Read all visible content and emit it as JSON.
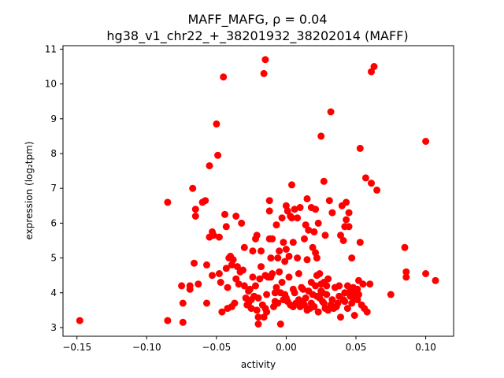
{
  "chart_data": {
    "type": "scatter",
    "title_line1": "MAFF_MAFG, ρ = 0.04",
    "title_line2": "hg38_v1_chr22_+_38201932_38202014 (MAFF)",
    "xlabel": "activity",
    "ylabel": "expression (log₂tpm)",
    "xlim": [
      -0.16,
      0.12
    ],
    "ylim": [
      2.75,
      11.1
    ],
    "xticks": [
      -0.15,
      -0.1,
      -0.05,
      0.0,
      0.05,
      0.1
    ],
    "xtick_labels": [
      "−0.15",
      "−0.10",
      "−0.05",
      "0.00",
      "0.05",
      "0.10"
    ],
    "yticks": [
      3,
      4,
      5,
      6,
      7,
      8,
      9,
      10,
      11
    ],
    "ytick_labels": [
      "3",
      "4",
      "5",
      "6",
      "7",
      "8",
      "9",
      "10",
      "11"
    ],
    "marker_color": "#ff0000",
    "grid": false,
    "points": [
      [
        -0.148,
        3.2
      ],
      [
        -0.085,
        6.6
      ],
      [
        -0.085,
        3.2
      ],
      [
        -0.075,
        4.2
      ],
      [
        -0.074,
        3.7
      ],
      [
        -0.074,
        3.15
      ],
      [
        -0.069,
        4.2
      ],
      [
        -0.069,
        4.1
      ],
      [
        -0.067,
        7.0
      ],
      [
        -0.066,
        4.85
      ],
      [
        -0.065,
        6.4
      ],
      [
        -0.065,
        6.2
      ],
      [
        -0.063,
        4.25
      ],
      [
        -0.06,
        6.6
      ],
      [
        -0.058,
        6.65
      ],
      [
        -0.057,
        3.7
      ],
      [
        -0.057,
        4.8
      ],
      [
        -0.055,
        5.6
      ],
      [
        -0.055,
        7.65
      ],
      [
        -0.053,
        5.75
      ],
      [
        -0.053,
        4.5
      ],
      [
        -0.052,
        5.65
      ],
      [
        -0.05,
        8.85
      ],
      [
        -0.049,
        7.95
      ],
      [
        -0.048,
        5.6
      ],
      [
        -0.048,
        4.55
      ],
      [
        -0.047,
        4.3
      ],
      [
        -0.046,
        3.45
      ],
      [
        -0.045,
        10.2
      ],
      [
        -0.044,
        6.25
      ],
      [
        -0.043,
        5.9
      ],
      [
        -0.043,
        4.7
      ],
      [
        -0.042,
        3.55
      ],
      [
        -0.042,
        4.15
      ],
      [
        -0.041,
        5.0
      ],
      [
        -0.04,
        5.05
      ],
      [
        -0.039,
        4.8
      ],
      [
        -0.039,
        3.6
      ],
      [
        -0.038,
        4.95
      ],
      [
        -0.037,
        3.7
      ],
      [
        -0.036,
        6.2
      ],
      [
        -0.036,
        4.4
      ],
      [
        -0.035,
        4.75
      ],
      [
        -0.034,
        4.25
      ],
      [
        -0.033,
        4.6
      ],
      [
        -0.032,
        6.0
      ],
      [
        -0.031,
        4.65
      ],
      [
        -0.03,
        4.2
      ],
      [
        -0.03,
        5.3
      ],
      [
        -0.029,
        3.85
      ],
      [
        -0.028,
        3.65
      ],
      [
        -0.027,
        4.05
      ],
      [
        -0.027,
        3.7
      ],
      [
        -0.026,
        4.1
      ],
      [
        -0.025,
        3.8
      ],
      [
        -0.025,
        3.55
      ],
      [
        -0.024,
        5.2
      ],
      [
        -0.024,
        4.45
      ],
      [
        -0.023,
        3.9
      ],
      [
        -0.022,
        4.2
      ],
      [
        -0.022,
        5.55
      ],
      [
        -0.021,
        3.5
      ],
      [
        -0.021,
        5.65
      ],
      [
        -0.02,
        3.1
      ],
      [
        -0.02,
        3.3
      ],
      [
        -0.02,
        3.85
      ],
      [
        -0.019,
        4.4
      ],
      [
        -0.018,
        4.75
      ],
      [
        -0.018,
        5.2
      ],
      [
        -0.017,
        3.65
      ],
      [
        -0.016,
        3.3
      ],
      [
        -0.016,
        10.3
      ],
      [
        -0.015,
        10.7
      ],
      [
        -0.015,
        4.5
      ],
      [
        -0.015,
        3.55
      ],
      [
        -0.014,
        3.45
      ],
      [
        -0.014,
        3.95
      ],
      [
        -0.013,
        4.45
      ],
      [
        -0.012,
        6.35
      ],
      [
        -0.012,
        5.55
      ],
      [
        -0.012,
        6.65
      ],
      [
        -0.011,
        5.0
      ],
      [
        -0.011,
        4.45
      ],
      [
        -0.01,
        5.55
      ],
      [
        -0.01,
        4.55
      ],
      [
        -0.009,
        3.6
      ],
      [
        -0.008,
        3.75
      ],
      [
        -0.008,
        4.0
      ],
      [
        -0.007,
        4.15
      ],
      [
        -0.007,
        5.95
      ],
      [
        -0.006,
        5.0
      ],
      [
        -0.006,
        3.7
      ],
      [
        -0.005,
        5.2
      ],
      [
        -0.005,
        4.6
      ],
      [
        -0.004,
        3.1
      ],
      [
        -0.004,
        4.0
      ],
      [
        -0.003,
        4.3
      ],
      [
        -0.003,
        6.15
      ],
      [
        -0.002,
        3.8
      ],
      [
        -0.002,
        5.45
      ],
      [
        -0.001,
        3.95
      ],
      [
        -0.001,
        4.9
      ],
      [
        0.0,
        5.25
      ],
      [
        0.0,
        3.85
      ],
      [
        0.0,
        6.5
      ],
      [
        0.001,
        3.75
      ],
      [
        0.001,
        6.35
      ],
      [
        0.002,
        5.05
      ],
      [
        0.002,
        4.45
      ],
      [
        0.003,
        3.65
      ],
      [
        0.003,
        6.2
      ],
      [
        0.004,
        6.15
      ],
      [
        0.004,
        7.1
      ],
      [
        0.005,
        5.45
      ],
      [
        0.005,
        4.1
      ],
      [
        0.005,
        3.6
      ],
      [
        0.006,
        4.0
      ],
      [
        0.006,
        6.4
      ],
      [
        0.007,
        3.7
      ],
      [
        0.008,
        5.0
      ],
      [
        0.008,
        6.15
      ],
      [
        0.009,
        3.8
      ],
      [
        0.009,
        4.55
      ],
      [
        0.01,
        3.6
      ],
      [
        0.01,
        6.45
      ],
      [
        0.011,
        4.15
      ],
      [
        0.012,
        3.75
      ],
      [
        0.012,
        4.1
      ],
      [
        0.013,
        5.55
      ],
      [
        0.013,
        3.65
      ],
      [
        0.014,
        3.85
      ],
      [
        0.014,
        5.95
      ],
      [
        0.015,
        6.7
      ],
      [
        0.015,
        4.95
      ],
      [
        0.015,
        3.5
      ],
      [
        0.016,
        4.05
      ],
      [
        0.016,
        5.8
      ],
      [
        0.017,
        3.55
      ],
      [
        0.018,
        3.7
      ],
      [
        0.018,
        4.3
      ],
      [
        0.018,
        6.45
      ],
      [
        0.019,
        5.3
      ],
      [
        0.019,
        3.95
      ],
      [
        0.02,
        5.75
      ],
      [
        0.02,
        3.6
      ],
      [
        0.021,
        4.2
      ],
      [
        0.021,
        5.15
      ],
      [
        0.021,
        6.4
      ],
      [
        0.022,
        3.9
      ],
      [
        0.022,
        5.0
      ],
      [
        0.022,
        4.5
      ],
      [
        0.023,
        6.0
      ],
      [
        0.023,
        3.45
      ],
      [
        0.024,
        4.55
      ],
      [
        0.024,
        3.85
      ],
      [
        0.025,
        8.5
      ],
      [
        0.025,
        4.25
      ],
      [
        0.025,
        4.05
      ],
      [
        0.026,
        3.75
      ],
      [
        0.026,
        4.0
      ],
      [
        0.027,
        7.2
      ],
      [
        0.027,
        4.3
      ],
      [
        0.027,
        3.7
      ],
      [
        0.028,
        3.55
      ],
      [
        0.028,
        5.65
      ],
      [
        0.029,
        4.2
      ],
      [
        0.029,
        3.95
      ],
      [
        0.03,
        4.4
      ],
      [
        0.03,
        3.5
      ],
      [
        0.031,
        6.65
      ],
      [
        0.032,
        9.2
      ],
      [
        0.032,
        3.65
      ],
      [
        0.033,
        3.8
      ],
      [
        0.033,
        6.3
      ],
      [
        0.034,
        3.55
      ],
      [
        0.035,
        4.15
      ],
      [
        0.036,
        3.6
      ],
      [
        0.037,
        3.7
      ],
      [
        0.038,
        3.9
      ],
      [
        0.038,
        4.2
      ],
      [
        0.039,
        3.3
      ],
      [
        0.039,
        5.65
      ],
      [
        0.04,
        6.5
      ],
      [
        0.041,
        3.8
      ],
      [
        0.041,
        5.5
      ],
      [
        0.042,
        4.0
      ],
      [
        0.042,
        3.75
      ],
      [
        0.042,
        5.9
      ],
      [
        0.043,
        6.1
      ],
      [
        0.043,
        6.6
      ],
      [
        0.044,
        4.2
      ],
      [
        0.044,
        3.55
      ],
      [
        0.045,
        6.3
      ],
      [
        0.045,
        5.9
      ],
      [
        0.046,
        3.9
      ],
      [
        0.046,
        4.05
      ],
      [
        0.047,
        3.7
      ],
      [
        0.047,
        5.0
      ],
      [
        0.048,
        3.85
      ],
      [
        0.048,
        4.15
      ],
      [
        0.049,
        3.35
      ],
      [
        0.05,
        4.0
      ],
      [
        0.051,
        3.8
      ],
      [
        0.051,
        4.1
      ],
      [
        0.052,
        4.35
      ],
      [
        0.052,
        3.95
      ],
      [
        0.053,
        5.45
      ],
      [
        0.053,
        8.15
      ],
      [
        0.054,
        3.65
      ],
      [
        0.055,
        4.25
      ],
      [
        0.056,
        3.55
      ],
      [
        0.057,
        7.3
      ],
      [
        0.058,
        3.45
      ],
      [
        0.06,
        4.25
      ],
      [
        0.061,
        10.35
      ],
      [
        0.061,
        7.15
      ],
      [
        0.063,
        10.5
      ],
      [
        0.065,
        6.95
      ],
      [
        0.075,
        3.95
      ],
      [
        0.085,
        5.3
      ],
      [
        0.086,
        4.6
      ],
      [
        0.086,
        4.45
      ],
      [
        0.1,
        8.35
      ],
      [
        0.1,
        4.55
      ],
      [
        0.107,
        4.35
      ]
    ]
  }
}
